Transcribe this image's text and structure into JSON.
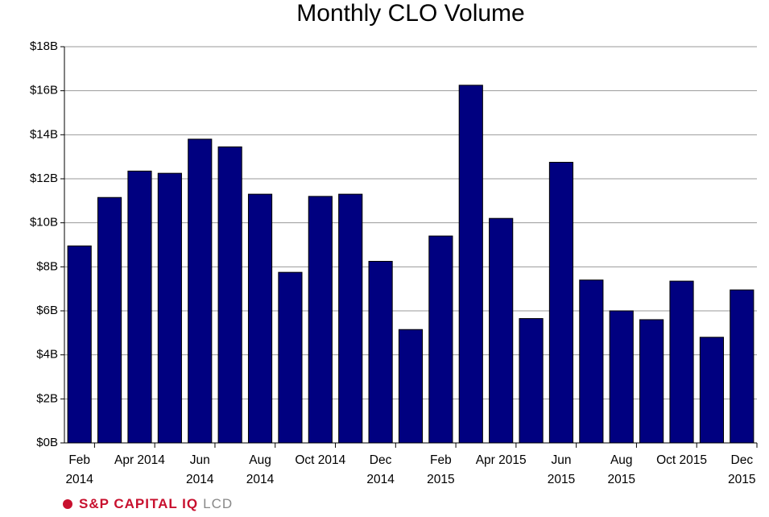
{
  "chart_data": {
    "type": "bar",
    "title": "Monthly CLO Volume",
    "categories": [
      "Feb\n2014",
      null,
      "Apr 2014",
      null,
      "Jun\n2014",
      null,
      "Aug\n2014",
      null,
      "Oct 2014",
      null,
      "Dec\n2014",
      null,
      "Feb\n2015",
      null,
      "Apr 2015",
      null,
      "Jun\n2015",
      null,
      "Aug\n2015",
      null,
      "Oct 2015",
      null,
      "Dec\n2015"
    ],
    "values": [
      8.95,
      11.15,
      12.35,
      12.25,
      13.8,
      13.45,
      11.3,
      7.75,
      11.2,
      11.3,
      8.25,
      5.15,
      9.4,
      16.25,
      10.2,
      5.65,
      12.75,
      7.4,
      6.0,
      5.6,
      7.35,
      4.8,
      6.95
    ],
    "color": "#000080",
    "ylim": [
      0,
      18
    ],
    "yticks": [
      {
        "value": 0,
        "label": "$0B"
      },
      {
        "value": 2,
        "label": "$2B"
      },
      {
        "value": 4,
        "label": "$4B"
      },
      {
        "value": 6,
        "label": "$6B"
      },
      {
        "value": 8,
        "label": "$8B"
      },
      {
        "value": 10,
        "label": "$10B"
      },
      {
        "value": 12,
        "label": "$12B"
      },
      {
        "value": 14,
        "label": "$14B"
      },
      {
        "value": 16,
        "label": "$16B"
      },
      {
        "value": 18,
        "label": "$18B"
      }
    ],
    "grid": true
  },
  "footer": {
    "brand": "S&P CAPITAL IQ",
    "product": "LCD"
  }
}
